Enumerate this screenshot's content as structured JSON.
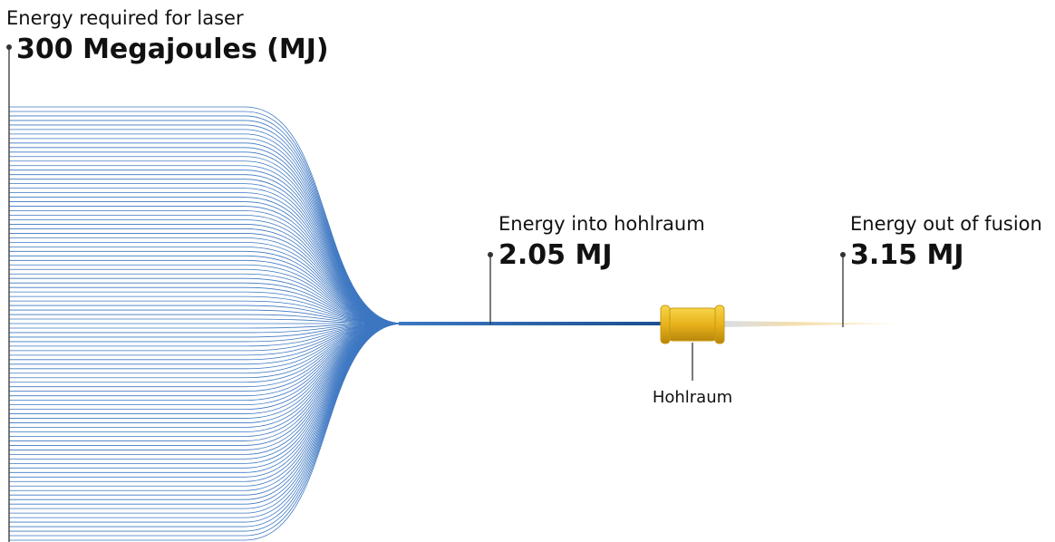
{
  "laser": {
    "label": "Energy required for laser",
    "value": "300 Megajoules (MJ)"
  },
  "hohlraum_in": {
    "label": "Energy into hohlraum",
    "value": "2.05 MJ"
  },
  "fusion_out": {
    "label": "Energy out of fusion",
    "value": "3.15 MJ"
  },
  "hohlraum": {
    "label": "Hohlraum"
  }
}
